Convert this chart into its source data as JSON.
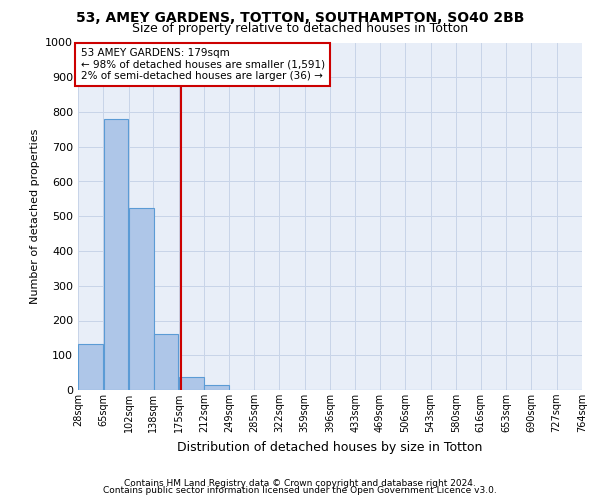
{
  "title1": "53, AMEY GARDENS, TOTTON, SOUTHAMPTON, SO40 2BB",
  "title2": "Size of property relative to detached houses in Totton",
  "xlabel": "Distribution of detached houses by size in Totton",
  "ylabel": "Number of detached properties",
  "footnote1": "Contains HM Land Registry data © Crown copyright and database right 2024.",
  "footnote2": "Contains public sector information licensed under the Open Government Licence v3.0.",
  "annotation_title": "53 AMEY GARDENS: 179sqm",
  "annotation_line1": "← 98% of detached houses are smaller (1,591)",
  "annotation_line2": "2% of semi-detached houses are larger (36) →",
  "property_size": 179,
  "bins": [
    28,
    65,
    102,
    138,
    175,
    212,
    249,
    285,
    322,
    359,
    396,
    433,
    469,
    506,
    543,
    580,
    616,
    653,
    690,
    727,
    764
  ],
  "counts": [
    133,
    779,
    524,
    160,
    37,
    14,
    0,
    0,
    0,
    0,
    0,
    0,
    0,
    0,
    0,
    0,
    0,
    0,
    0,
    0
  ],
  "bar_color": "#aec6e8",
  "bar_edge_color": "#5b9bd5",
  "vline_color": "#cc0000",
  "vline_x": 179,
  "annotation_box_color": "#cc0000",
  "grid_color": "#c8d4e8",
  "bg_color": "#e8eef8",
  "ylim": [
    0,
    1000
  ],
  "yticks": [
    0,
    100,
    200,
    300,
    400,
    500,
    600,
    700,
    800,
    900,
    1000
  ],
  "title1_fontsize": 10,
  "title2_fontsize": 9,
  "ylabel_fontsize": 8,
  "xlabel_fontsize": 9,
  "footnote_fontsize": 6.5,
  "tick_labelsize": 8,
  "xtick_labelsize": 7
}
